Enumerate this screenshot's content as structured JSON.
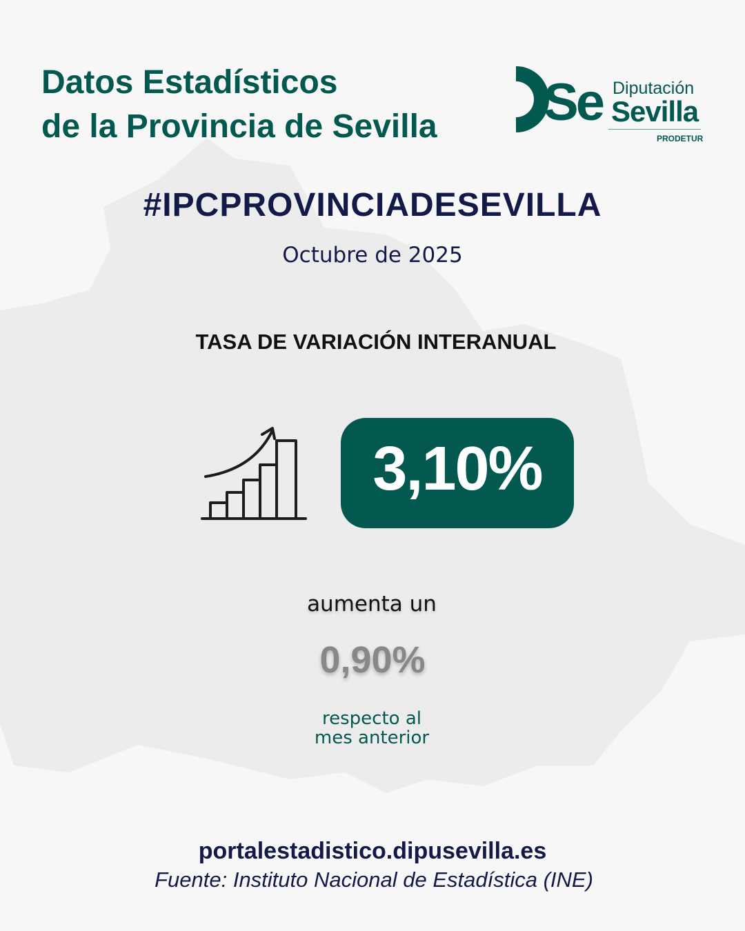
{
  "header": {
    "title_line1": "Datos Estadísticos",
    "title_line2": "de la Provincia de Sevilla"
  },
  "logo": {
    "monogram": "Se",
    "line1": "Diputación",
    "line2": "Sevilla",
    "line3": "PRODETUR",
    "color": "#03594f"
  },
  "hashtag": "#IPCPROVINCIADESEVILLA",
  "period": "Octubre de 2025",
  "rate_label": "TASA DE VARIACIÓN INTERANUAL",
  "annual_rate": "3,10%",
  "monthly": {
    "prefix": "aumenta un",
    "value": "0,90%",
    "suffix_line1": "respecto al",
    "suffix_line2": "mes anterior"
  },
  "footer": {
    "url": "portalestadistico.dipusevilla.es",
    "source": "Fuente: Instituto Nacional de Estadística (INE)"
  },
  "icons": {
    "growth": "bar-chart-growth-icon",
    "background": "sevilla-province-map"
  },
  "colors": {
    "brand_green": "#03594f",
    "navy": "#141a48",
    "background": "#f7f7f7",
    "map": "#ececec"
  }
}
